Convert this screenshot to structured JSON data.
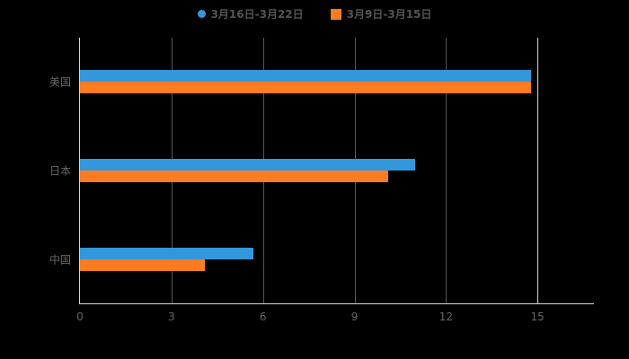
{
  "background": "#000000",
  "chart_data": {
    "type": "bar",
    "orientation": "horizontal",
    "title": "",
    "xlabel": "",
    "ylabel": "",
    "categories": [
      "美国",
      "日本",
      "中国"
    ],
    "series": [
      {
        "name": "3月16日-3月22日",
        "color": "#3398db",
        "marker": "circle",
        "values": [
          14.8,
          11.0,
          5.7
        ]
      },
      {
        "name": "3月9日-3月15日",
        "color": "#fb7c21",
        "marker": "square",
        "values": [
          14.8,
          10.1,
          4.1
        ]
      }
    ],
    "x_ticks": [
      0,
      3,
      6,
      9,
      12,
      15
    ],
    "xlim": [
      0,
      16.85
    ],
    "grid": true,
    "legend_position": "top-center"
  }
}
